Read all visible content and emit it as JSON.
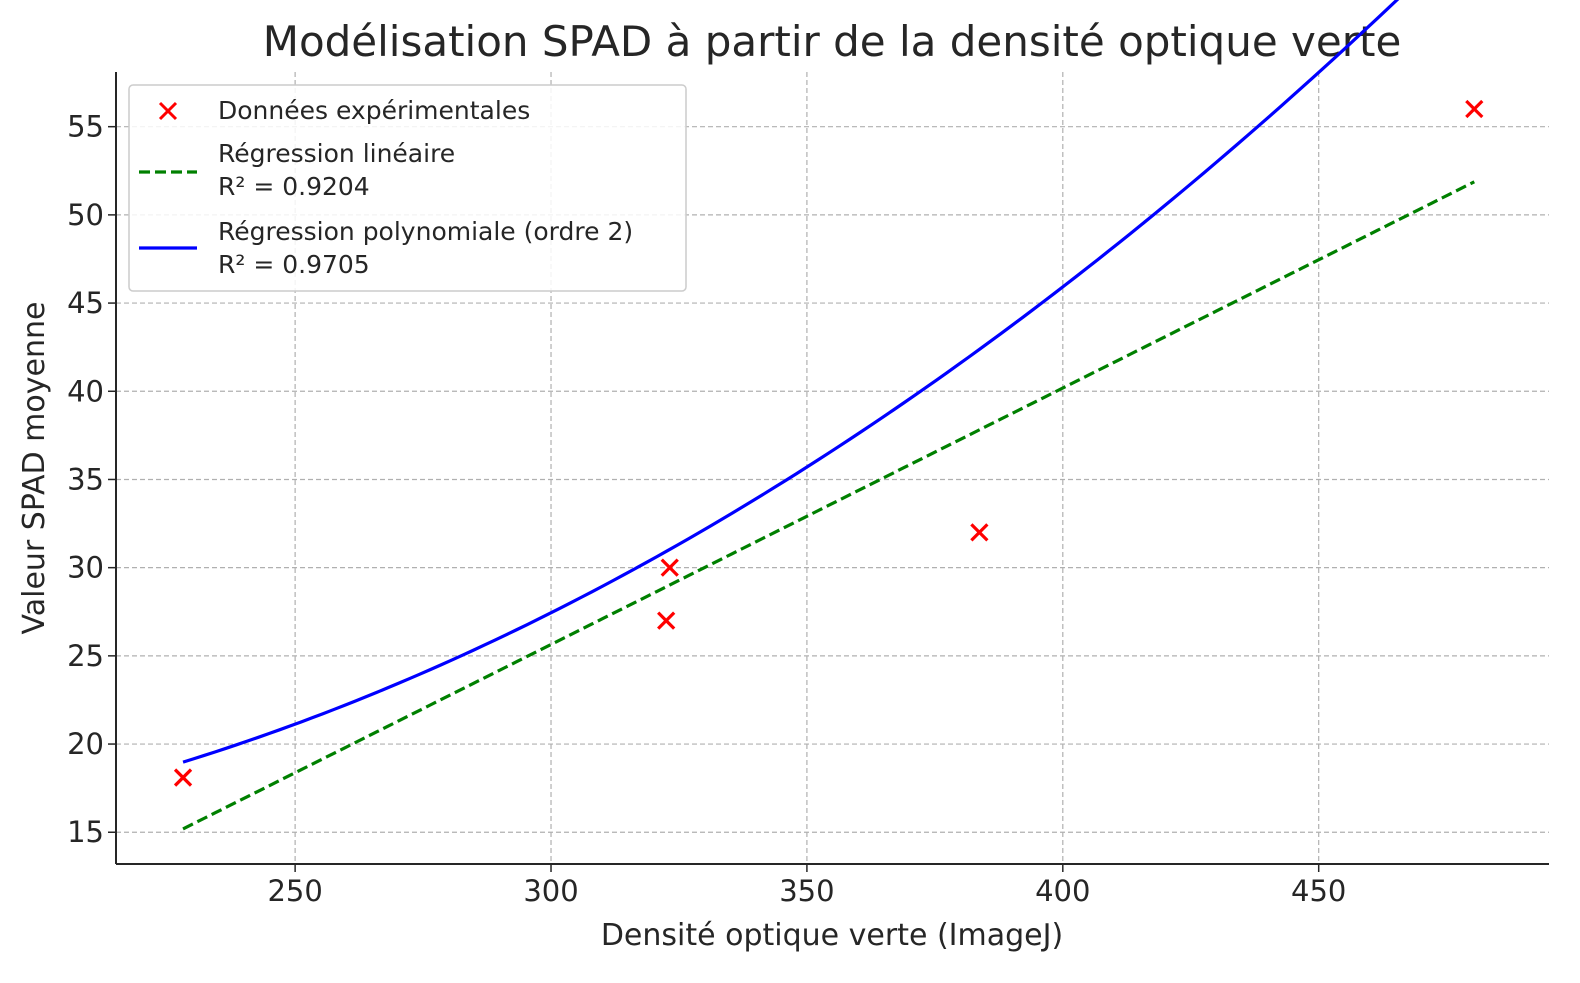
{
  "chart_data": {
    "type": "scatter",
    "title": "Modélisation SPAD à partir de la densité optique verte",
    "xlabel": "Densité optique verte (ImageJ)",
    "ylabel": "Valeur SPAD moyenne",
    "xlim": [
      215,
      495
    ],
    "ylim": [
      13.2,
      58.1
    ],
    "x_ticks": [
      250,
      300,
      350,
      400,
      450
    ],
    "y_ticks": [
      15,
      20,
      25,
      30,
      35,
      40,
      45,
      50,
      55
    ],
    "grid": true,
    "legend_position": "top-left",
    "series": [
      {
        "name": "Données expérimentales",
        "kind": "scatter",
        "marker": "x",
        "color": "#ff0000",
        "points": [
          {
            "x": 228.1,
            "y": 18.1
          },
          {
            "x": 322.5,
            "y": 27.0
          },
          {
            "x": 323.2,
            "y": 30.0
          },
          {
            "x": 383.7,
            "y": 32.0
          },
          {
            "x": 480.4,
            "y": 56.0
          }
        ]
      },
      {
        "name": "Régression linéaire",
        "r2_label": "R² = 0.9204",
        "kind": "line",
        "style": "dashed",
        "color": "#008000",
        "fit": {
          "model": "linear",
          "slope": 0.1454,
          "intercept": -17.976,
          "x_range": [
            228.1,
            480.4
          ]
        }
      },
      {
        "name": "Régression polynomiale (ordre 2)",
        "r2_label": "R² = 0.9705",
        "kind": "line",
        "style": "solid",
        "color": "#0000ff",
        "fit": {
          "model": "quadratic",
          "a": 0.0003898,
          "b": -0.08812,
          "c": 18.7965,
          "x_range": [
            228.1,
            480.4
          ]
        }
      }
    ]
  }
}
